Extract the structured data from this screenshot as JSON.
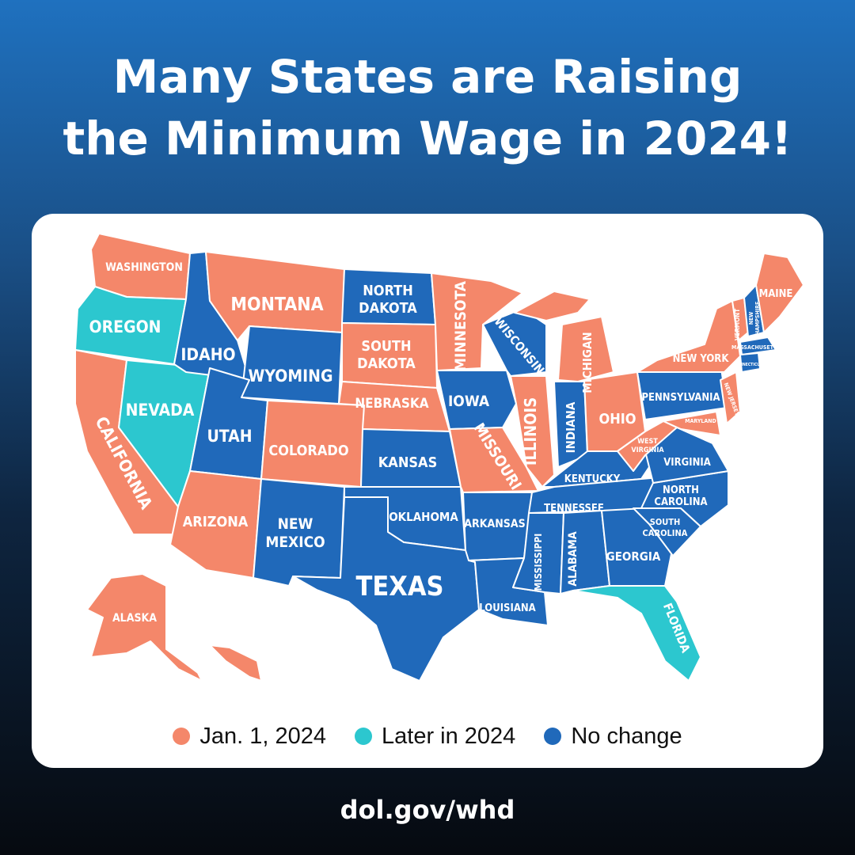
{
  "title": {
    "line1": "Many States are Raising",
    "line2": "the Minimum Wage in 2024!"
  },
  "legend": [
    {
      "label": "Jan. 1, 2024",
      "color": "#f4876a"
    },
    {
      "label": "Later in 2024",
      "color": "#2cc7cf"
    },
    {
      "label": "No change",
      "color": "#2069ba"
    }
  ],
  "colors": {
    "jan": "#f4876a",
    "later": "#2cc7cf",
    "none": "#2069ba"
  },
  "states": {
    "washington": "WASHINGTON",
    "oregon": "OREGON",
    "california": "CALIFORNIA",
    "nevada": "NEVADA",
    "idaho": "IDAHO",
    "montana": "MONTANA",
    "wyoming": "WYOMING",
    "utah": "UTAH",
    "colorado": "COLORADO",
    "arizona": "ARIZONA",
    "new_mexico_1": "NEW",
    "new_mexico_2": "MEXICO",
    "north_dakota_1": "NORTH",
    "north_dakota_2": "DAKOTA",
    "south_dakota_1": "SOUTH",
    "south_dakota_2": "DAKOTA",
    "nebraska": "NEBRASKA",
    "kansas": "KANSAS",
    "oklahoma": "OKLAHOMA",
    "texas": "TEXAS",
    "minnesota": "MINNESOTA",
    "iowa": "IOWA",
    "missouri": "MISSOURI",
    "arkansas": "ARKANSAS",
    "louisiana": "LOUISIANA",
    "wisconsin": "WISCONSIN",
    "illinois": "ILLINOIS",
    "michigan": "MICHIGAN",
    "indiana": "INDIANA",
    "ohio": "OHIO",
    "kentucky": "KENTUCKY",
    "tennessee": "TENNESSEE",
    "mississippi": "MISSISSIPPI",
    "alabama": "ALABAMA",
    "georgia": "GEORGIA",
    "florida": "FLORIDA",
    "south_carolina_1": "SOUTH",
    "south_carolina_2": "CAROLINA",
    "north_carolina_1": "NORTH",
    "north_carolina_2": "CAROLINA",
    "virginia": "VIRGINIA",
    "west_virginia_1": "WEST",
    "west_virginia_2": "VIRGINIA",
    "pennsylvania": "PENNSYLVANIA",
    "new_york": "NEW YORK",
    "maine": "MAINE",
    "vermont": "VERMONT",
    "new_hampshire_1": "NEW",
    "new_hampshire_2": "HAMPSHIRE",
    "massachusetts": "MASSACHUSETTS",
    "connecticut": "CONNECTICUT",
    "new_jersey": "NEW JERSEY",
    "maryland": "MARYLAND",
    "alaska": "ALASKA"
  },
  "footer": "dol.gov/whd"
}
